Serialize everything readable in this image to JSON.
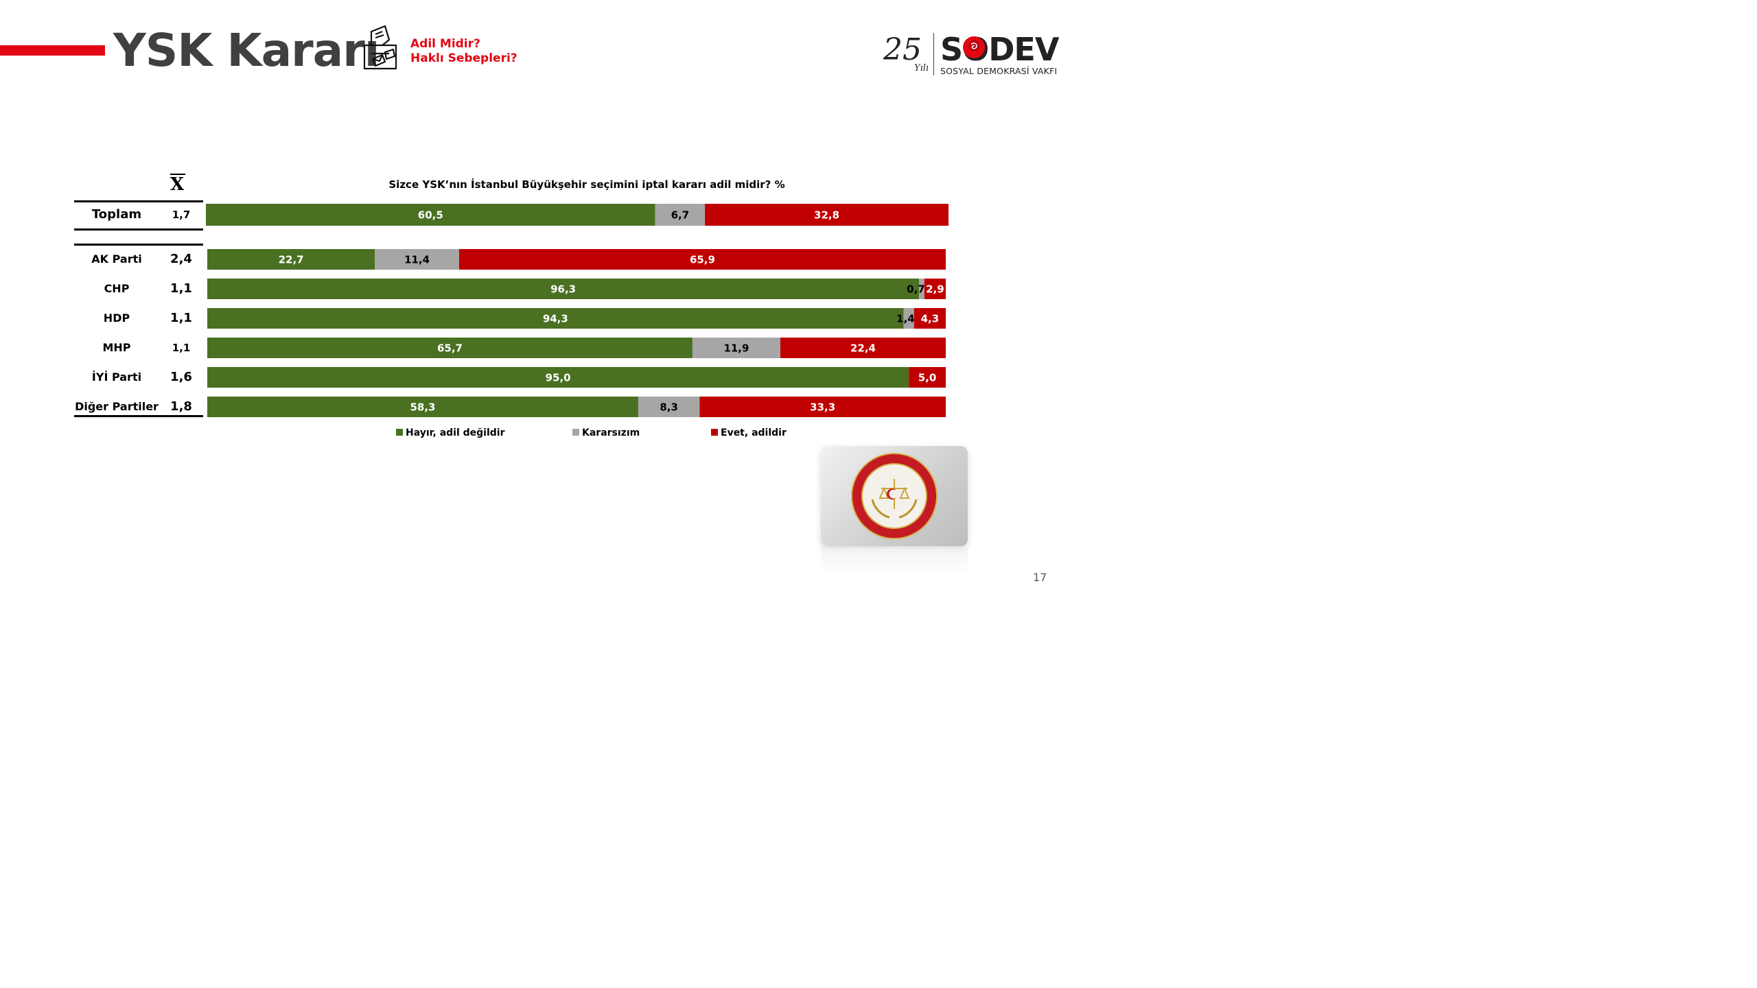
{
  "header": {
    "title": "YSK Kararı",
    "subtitle_line1": "Adil Midir?",
    "subtitle_line2": "Haklı Sebepleri?",
    "logo": {
      "years": "25",
      "years_suffix": "Yılı",
      "name": "SODEV",
      "full_name": "SOSYAL DEMOKRASİ VAKFI"
    }
  },
  "mean_header": "X",
  "page_number": "17",
  "colors": {
    "hayir": "#4a7022",
    "kararsiz": "#a6a6a6",
    "evet": "#c00000",
    "accent_red": "#e30613"
  },
  "chart_data": {
    "type": "bar",
    "orientation": "horizontal",
    "stacked": true,
    "percent_stacked": true,
    "title": "Sizce YSK’nın İstanbul Büyükşehir seçimini iptal kararı adil midir? %",
    "categories": [
      "Toplam",
      "AK Parti",
      "CHP",
      "HDP",
      "MHP",
      "İYİ Parti",
      "Diğer Partiler"
    ],
    "means": [
      "1,7",
      "2,4",
      "1,1",
      "1,1",
      "1,1",
      "1,6",
      "1,8"
    ],
    "series": [
      {
        "name": "Hayır, adil değildir",
        "color": "#4a7022",
        "values": [
          60.5,
          22.7,
          96.3,
          94.3,
          65.7,
          95.0,
          58.3
        ],
        "labels": [
          "60,5",
          "22,7",
          "96,3",
          "94,3",
          "65,7",
          "95,0",
          "58,3"
        ]
      },
      {
        "name": "Kararsızım",
        "color": "#a6a6a6",
        "values": [
          6.7,
          11.4,
          0.7,
          1.4,
          11.9,
          0,
          8.3
        ],
        "labels": [
          "6,7",
          "11,4",
          "0,7",
          "1,4",
          "11,9",
          "",
          "8,3"
        ]
      },
      {
        "name": "Evet, adildir",
        "color": "#c00000",
        "values": [
          32.8,
          65.9,
          2.9,
          4.3,
          22.4,
          5.0,
          33.3
        ],
        "labels": [
          "32,8",
          "65,9",
          "2,9",
          "4,3",
          "22,4",
          "5,0",
          "33,3"
        ]
      }
    ],
    "legend_position": "bottom"
  }
}
